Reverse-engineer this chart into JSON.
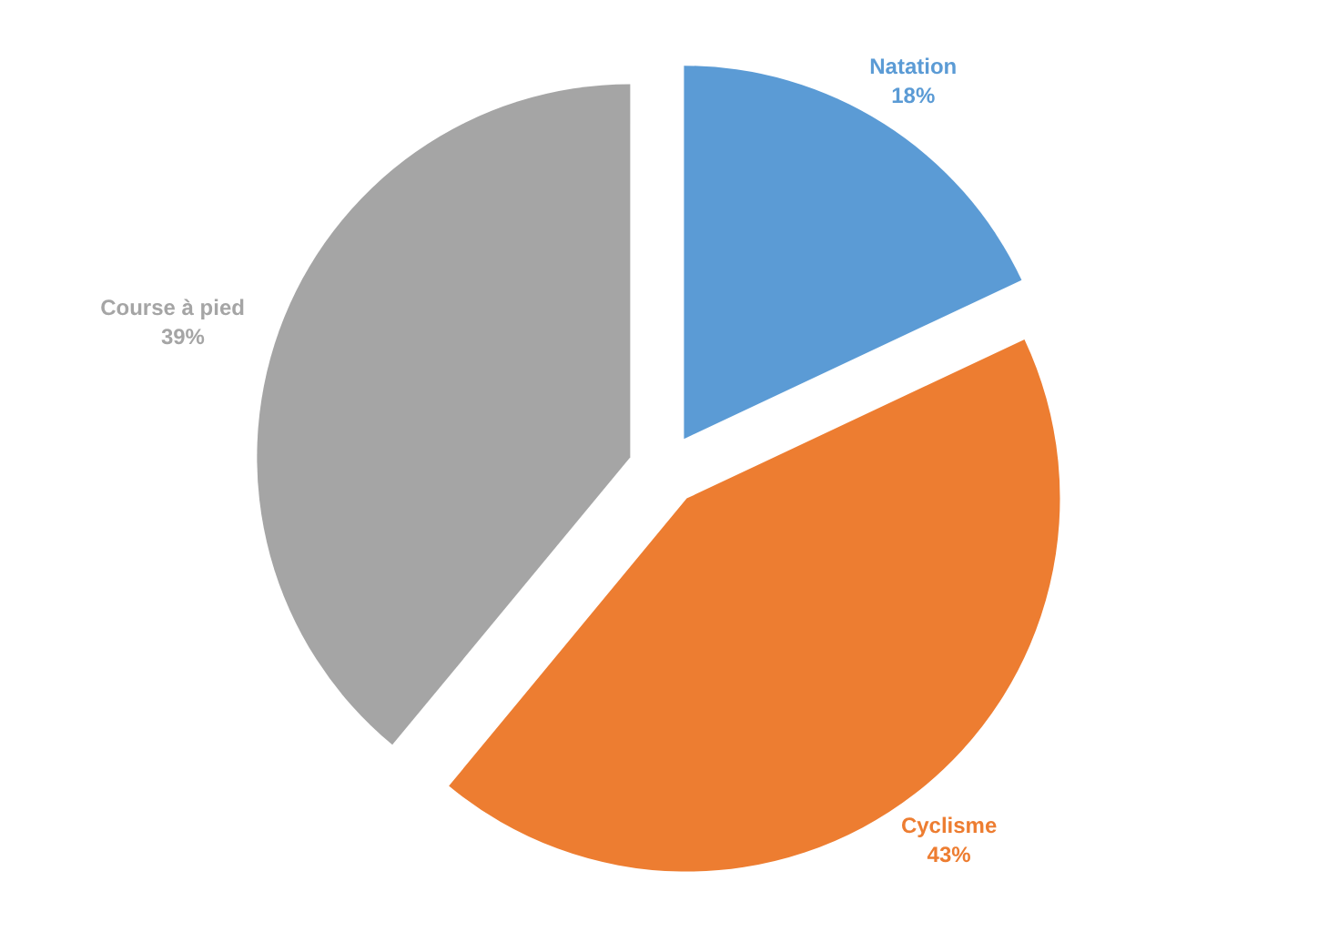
{
  "chart_data": {
    "type": "pie",
    "categories": [
      "Natation",
      "Cyclisme",
      "Course à pied"
    ],
    "values": [
      18,
      43,
      39
    ],
    "colors": [
      "#5b9bd5",
      "#ed7d31",
      "#a5a5a5"
    ],
    "value_labels": [
      "18%",
      "43%",
      "39%"
    ],
    "legend": false
  }
}
